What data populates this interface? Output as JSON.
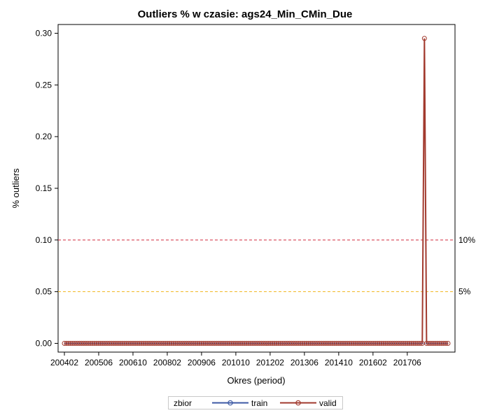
{
  "chart_data": {
    "type": "line",
    "title": "Outliers % w czasie: ags24_Min_CMin_Due",
    "xlabel": "Okres (period)",
    "ylabel": "% outliers",
    "x_tick_labels": [
      "200402",
      "200506",
      "200610",
      "200802",
      "200906",
      "201010",
      "201202",
      "201306",
      "201410",
      "201602",
      "201706"
    ],
    "y_tick_labels": [
      "0.00",
      "0.05",
      "0.10",
      "0.15",
      "0.20",
      "0.25",
      "0.30"
    ],
    "ylim": [
      0.0,
      0.3
    ],
    "period_start": "2004-02",
    "period_count": 180,
    "series": [
      {
        "name": "train",
        "color": "#3d5aa5",
        "marker": "circle",
        "values_all_zero": true
      },
      {
        "name": "valid",
        "color": "#a23a2e",
        "marker": "circle",
        "nonzero_points": [
          {
            "x": "201802",
            "y": 0.295
          }
        ],
        "x_range": [
          "200402",
          "201901"
        ]
      }
    ],
    "reference_lines": [
      {
        "y": 0.1,
        "label": "10%",
        "color": "#d42b3f",
        "style": "dashed"
      },
      {
        "y": 0.05,
        "label": "5%",
        "color": "#f0b61e",
        "style": "dashed"
      }
    ],
    "legend": {
      "title": "zbior",
      "position": "bottom-center"
    },
    "grid": false
  }
}
